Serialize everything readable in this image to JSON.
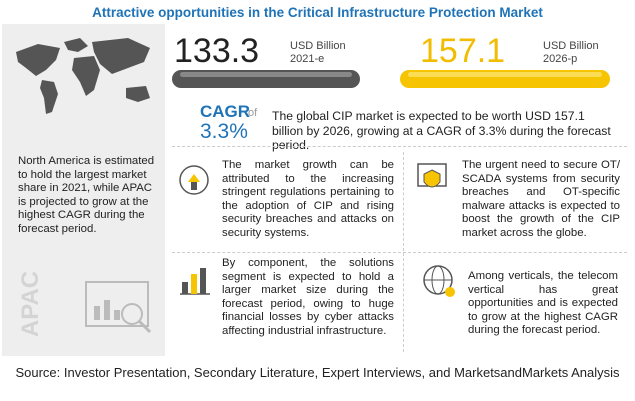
{
  "title": "Attractive opportunities in the Critical Infrastructure Protection Market",
  "market": {
    "start": {
      "value": "133.3",
      "unit": "USD Billion",
      "year": "2021-e"
    },
    "end": {
      "value": "157.1",
      "unit": "USD Billion",
      "year": "2026-p"
    }
  },
  "cagr": {
    "label": "CAGR",
    "of": "of",
    "value": "3.3%"
  },
  "summary": "The global CIP market is expected to be worth USD 157.1 billion by 2026, growing at a CAGR of 3.3% during the forecast period.",
  "region_note": "North America is estimated to hold the largest market share in 2021, while APAC is projected to grow at the highest CAGR during the forecast period.",
  "region": "APAC",
  "insights": [
    "The market growth can be attributed to the increasing stringent regulations pertaining to the adoption of CIP and rising security breaches and attacks on security systems.",
    "The urgent need to secure OT/ SCADA systems from security breaches and OT-specific malware attacks is expected to boost the growth of the CIP market across the globe.",
    "By component, the solutions segment is expected to hold a larger market size during the forecast period, owing to huge financial losses by cyber attacks affecting industrial infrastructure.",
    "Among verticals, the telecom vertical has great opportunities and is expected to grow at the highest CAGR during the forecast period."
  ],
  "source": "Source: Investor Presentation, Secondary Literature, Expert Interviews, and MarketsandMarkets Analysis"
}
